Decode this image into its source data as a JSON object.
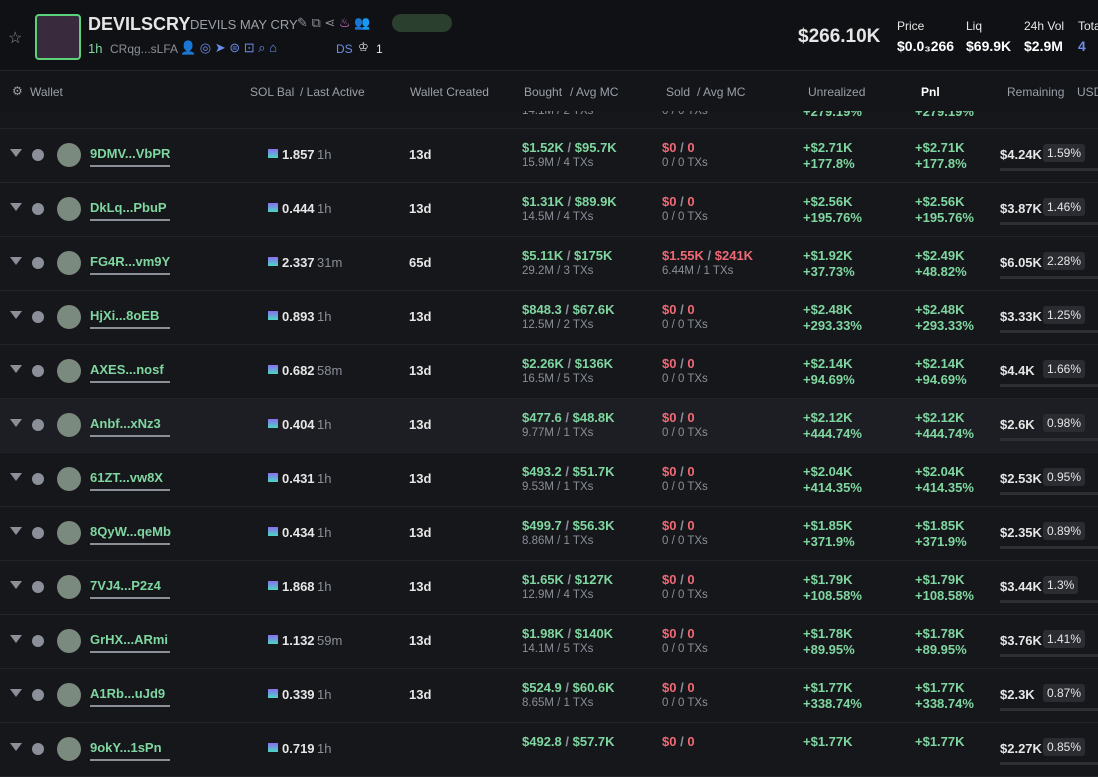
{
  "header": {
    "name": "DEVILSCRY",
    "subtitle": "DEVILS MAY CRY",
    "age": "1h",
    "address": "CRqg...sLFA",
    "ds": "DS",
    "count": "1",
    "market_cap": "$266.10K",
    "stats": [
      {
        "label": "Price",
        "value": "$0.0₃266"
      },
      {
        "label": "Liq",
        "value": "$69.9K"
      },
      {
        "label": "24h Vol",
        "value": "$2.9M"
      },
      {
        "label": "Tota",
        "value": "4"
      }
    ]
  },
  "table": {
    "columns": {
      "wallet": "Wallet",
      "sol_bal": "SOL Bal",
      "last_active": "/ Last Active",
      "created": "Wallet Created",
      "bought": "Bought",
      "bought_mc": "/ Avg MC",
      "sold": "Sold",
      "sold_mc": "/ Avg MC",
      "unrealized": "Unrealized",
      "pnl": "Pnl",
      "remaining": "Remaining",
      "usd": "USD"
    },
    "partial_row": {
      "bought_sub": "14.1M / 2 TXs",
      "sold_sub": "0 / 0 TXs",
      "unrealized_pct": "+279.19%",
      "pnl_pct": "+279.19%"
    },
    "rows": [
      {
        "wallet": "9DMV...VbPR",
        "sol": "1.857",
        "active": "1h",
        "created": "13d",
        "bought": "$1.52K",
        "bought_mc": "$95.7K",
        "bought_sub": "15.9M / 4 TXs",
        "sold": "$0",
        "sold_mc": "0",
        "sold_sub": "0 / 0 TXs",
        "unreal": "+$2.71K",
        "unreal_pct": "+177.8%",
        "pnl": "+$2.71K",
        "pnl_pct": "+177.8%",
        "remaining": "$4.24K",
        "remaining_pct": "1.59%"
      },
      {
        "wallet": "DkLq...PbuP",
        "sol": "0.444",
        "active": "1h",
        "created": "13d",
        "bought": "$1.31K",
        "bought_mc": "$89.9K",
        "bought_sub": "14.5M / 4 TXs",
        "sold": "$0",
        "sold_mc": "0",
        "sold_sub": "0 / 0 TXs",
        "unreal": "+$2.56K",
        "unreal_pct": "+195.76%",
        "pnl": "+$2.56K",
        "pnl_pct": "+195.76%",
        "remaining": "$3.87K",
        "remaining_pct": "1.46%"
      },
      {
        "wallet": "FG4R...vm9Y",
        "sol": "2.337",
        "active": "31m",
        "created": "65d",
        "bought": "$5.11K",
        "bought_mc": "$175K",
        "bought_sub": "29.2M / 3 TXs",
        "sold": "$1.55K",
        "sold_mc": "$241K",
        "sold_sub": "6.44M / 1 TXs",
        "unreal": "+$1.92K",
        "unreal_pct": "+37.73%",
        "pnl": "+$2.49K",
        "pnl_pct": "+48.82%",
        "remaining": "$6.05K",
        "remaining_pct": "2.28%"
      },
      {
        "wallet": "HjXi...8oEB",
        "sol": "0.893",
        "active": "1h",
        "created": "13d",
        "bought": "$848.3",
        "bought_mc": "$67.6K",
        "bought_sub": "12.5M / 2 TXs",
        "sold": "$0",
        "sold_mc": "0",
        "sold_sub": "0 / 0 TXs",
        "unreal": "+$2.48K",
        "unreal_pct": "+293.33%",
        "pnl": "+$2.48K",
        "pnl_pct": "+293.33%",
        "remaining": "$3.33K",
        "remaining_pct": "1.25%"
      },
      {
        "wallet": "AXES...nosf",
        "sol": "0.682",
        "active": "58m",
        "created": "13d",
        "bought": "$2.26K",
        "bought_mc": "$136K",
        "bought_sub": "16.5M / 5 TXs",
        "sold": "$0",
        "sold_mc": "0",
        "sold_sub": "0 / 0 TXs",
        "unreal": "+$2.14K",
        "unreal_pct": "+94.69%",
        "pnl": "+$2.14K",
        "pnl_pct": "+94.69%",
        "remaining": "$4.4K",
        "remaining_pct": "1.66%"
      },
      {
        "wallet": "Anbf...xNz3",
        "sol": "0.404",
        "active": "1h",
        "created": "13d",
        "bought": "$477.6",
        "bought_mc": "$48.8K",
        "bought_sub": "9.77M / 1 TXs",
        "sold": "$0",
        "sold_mc": "0",
        "sold_sub": "0 / 0 TXs",
        "unreal": "+$2.12K",
        "unreal_pct": "+444.74%",
        "pnl": "+$2.12K",
        "pnl_pct": "+444.74%",
        "remaining": "$2.6K",
        "remaining_pct": "0.98%"
      },
      {
        "wallet": "61ZT...vw8X",
        "sol": "0.431",
        "active": "1h",
        "created": "13d",
        "bought": "$493.2",
        "bought_mc": "$51.7K",
        "bought_sub": "9.53M / 1 TXs",
        "sold": "$0",
        "sold_mc": "0",
        "sold_sub": "0 / 0 TXs",
        "unreal": "+$2.04K",
        "unreal_pct": "+414.35%",
        "pnl": "+$2.04K",
        "pnl_pct": "+414.35%",
        "remaining": "$2.53K",
        "remaining_pct": "0.95%"
      },
      {
        "wallet": "8QyW...qeMb",
        "sol": "0.434",
        "active": "1h",
        "created": "13d",
        "bought": "$499.7",
        "bought_mc": "$56.3K",
        "bought_sub": "8.86M / 1 TXs",
        "sold": "$0",
        "sold_mc": "0",
        "sold_sub": "0 / 0 TXs",
        "unreal": "+$1.85K",
        "unreal_pct": "+371.9%",
        "pnl": "+$1.85K",
        "pnl_pct": "+371.9%",
        "remaining": "$2.35K",
        "remaining_pct": "0.89%"
      },
      {
        "wallet": "7VJ4...P2z4",
        "sol": "1.868",
        "active": "1h",
        "created": "13d",
        "bought": "$1.65K",
        "bought_mc": "$127K",
        "bought_sub": "12.9M / 4 TXs",
        "sold": "$0",
        "sold_mc": "0",
        "sold_sub": "0 / 0 TXs",
        "unreal": "+$1.79K",
        "unreal_pct": "+108.58%",
        "pnl": "+$1.79K",
        "pnl_pct": "+108.58%",
        "remaining": "$3.44K",
        "remaining_pct": "1.3%"
      },
      {
        "wallet": "GrHX...ARmi",
        "sol": "1.132",
        "active": "59m",
        "created": "13d",
        "bought": "$1.98K",
        "bought_mc": "$140K",
        "bought_sub": "14.1M / 5 TXs",
        "sold": "$0",
        "sold_mc": "0",
        "sold_sub": "0 / 0 TXs",
        "unreal": "+$1.78K",
        "unreal_pct": "+89.95%",
        "pnl": "+$1.78K",
        "pnl_pct": "+89.95%",
        "remaining": "$3.76K",
        "remaining_pct": "1.41%"
      },
      {
        "wallet": "A1Rb...uJd9",
        "sol": "0.339",
        "active": "1h",
        "created": "13d",
        "bought": "$524.9",
        "bought_mc": "$60.6K",
        "bought_sub": "8.65M / 1 TXs",
        "sold": "$0",
        "sold_mc": "0",
        "sold_sub": "0 / 0 TXs",
        "unreal": "+$1.77K",
        "unreal_pct": "+338.74%",
        "pnl": "+$1.77K",
        "pnl_pct": "+338.74%",
        "remaining": "$2.3K",
        "remaining_pct": "0.87%"
      },
      {
        "wallet": "9okY...1sPn",
        "sol": "0.719",
        "active": "1h",
        "bought": "$492.8",
        "bought_mc": "$57.7K",
        "sold": "$0",
        "sold_mc": "0",
        "unreal": "+$1.77K",
        "pnl": "+$1.77K",
        "remaining": "$2.27K",
        "remaining_pct": "0.85%"
      }
    ]
  }
}
